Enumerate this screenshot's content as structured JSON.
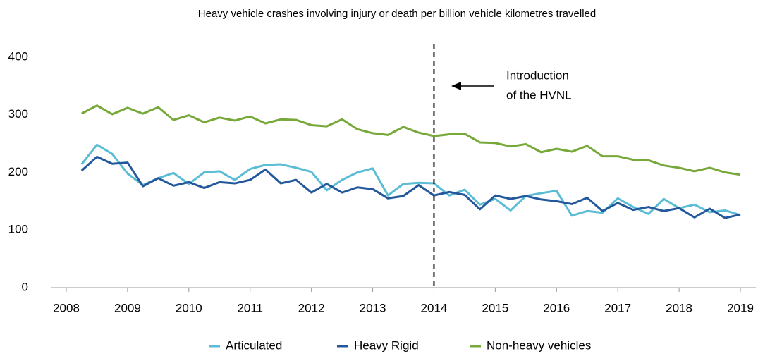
{
  "chart_data": {
    "type": "line",
    "title": "Heavy vehicle crashes involving injury or death per billion vehicle kilometres travelled",
    "x": [
      2008.25,
      2008.5,
      2008.75,
      2009,
      2009.25,
      2009.5,
      2009.75,
      2010,
      2010.25,
      2010.5,
      2010.75,
      2011,
      2011.25,
      2011.5,
      2011.75,
      2012,
      2012.25,
      2012.5,
      2012.75,
      2013,
      2013.25,
      2013.5,
      2013.75,
      2014,
      2014.25,
      2014.5,
      2014.75,
      2015,
      2015.25,
      2015.5,
      2015.75,
      2016,
      2016.25,
      2016.5,
      2016.75,
      2017,
      2017.25,
      2017.5,
      2017.75,
      2018,
      2018.25,
      2018.5,
      2018.75,
      2019
    ],
    "series": [
      {
        "name": "Articulated",
        "color": "#5bbcd6",
        "values": [
          214,
          248,
          232,
          198,
          178,
          190,
          199,
          180,
          200,
          202,
          187,
          206,
          213,
          214,
          208,
          201,
          169,
          187,
          200,
          207,
          160,
          180,
          182,
          181,
          160,
          170,
          144,
          154,
          134,
          159,
          164,
          168,
          125,
          133,
          130,
          155,
          140,
          128,
          154,
          138,
          144,
          131,
          134,
          126
        ]
      },
      {
        "name": "Heavy Rigid",
        "color": "#24589c",
        "values": [
          203,
          227,
          215,
          217,
          176,
          190,
          177,
          183,
          173,
          183,
          181,
          187,
          205,
          181,
          187,
          165,
          180,
          165,
          174,
          171,
          155,
          159,
          178,
          160,
          166,
          161,
          136,
          160,
          154,
          159,
          153,
          150,
          145,
          156,
          133,
          147,
          135,
          140,
          133,
          138,
          122,
          137,
          121,
          127
        ]
      },
      {
        "name": "Non-heavy vehicles",
        "color": "#77a83a",
        "values": [
          302,
          316,
          301,
          312,
          302,
          313,
          291,
          299,
          287,
          295,
          290,
          297,
          285,
          292,
          291,
          282,
          280,
          292,
          275,
          268,
          265,
          279,
          269,
          263,
          266,
          267,
          252,
          251,
          245,
          249,
          235,
          241,
          236,
          246,
          228,
          228,
          222,
          221,
          212,
          208,
          202,
          208,
          200,
          196
        ]
      }
    ],
    "xlim": [
      2008,
      2019
    ],
    "xticks": [
      2008,
      2009,
      2010,
      2011,
      2012,
      2013,
      2014,
      2015,
      2016,
      2017,
      2018,
      2019
    ],
    "ylim": [
      0,
      400
    ],
    "yticks": [
      0,
      100,
      200,
      300,
      400
    ],
    "annotation": {
      "x": 2014,
      "lines": [
        "Introduction",
        "of the HVNL"
      ]
    },
    "legend": "bottom"
  }
}
